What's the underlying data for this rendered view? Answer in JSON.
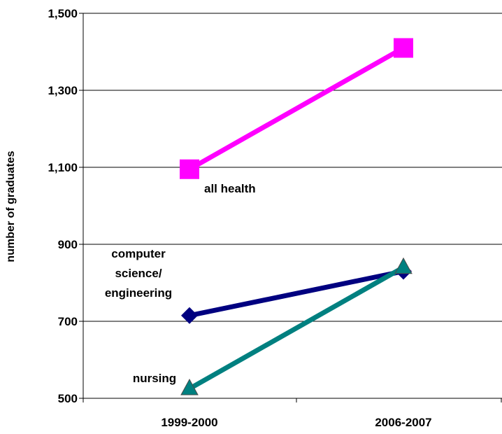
{
  "chart_data": {
    "type": "line",
    "title": "",
    "xlabel": "",
    "ylabel": "number of graduates",
    "categories": [
      "1999-2000",
      "2006-2007"
    ],
    "ylim": [
      500,
      1500
    ],
    "y_ticks": [
      500,
      700,
      900,
      1100,
      1300,
      1500
    ],
    "y_tick_labels": [
      "500",
      "700",
      "900",
      "1,100",
      "1,300",
      "1,500"
    ],
    "grid": "horizontal",
    "legend": "none",
    "series": [
      {
        "name": "all health",
        "values": [
          1095,
          1410
        ],
        "color": "#ff00ff",
        "marker": "square"
      },
      {
        "name": "computer science/ engineering",
        "label_lines": [
          "computer",
          "science/",
          "engineering"
        ],
        "values": [
          715,
          830
        ],
        "color": "#000080",
        "marker": "diamond"
      },
      {
        "name": "nursing",
        "values": [
          525,
          840
        ],
        "color": "#008080",
        "marker": "triangle"
      }
    ]
  }
}
